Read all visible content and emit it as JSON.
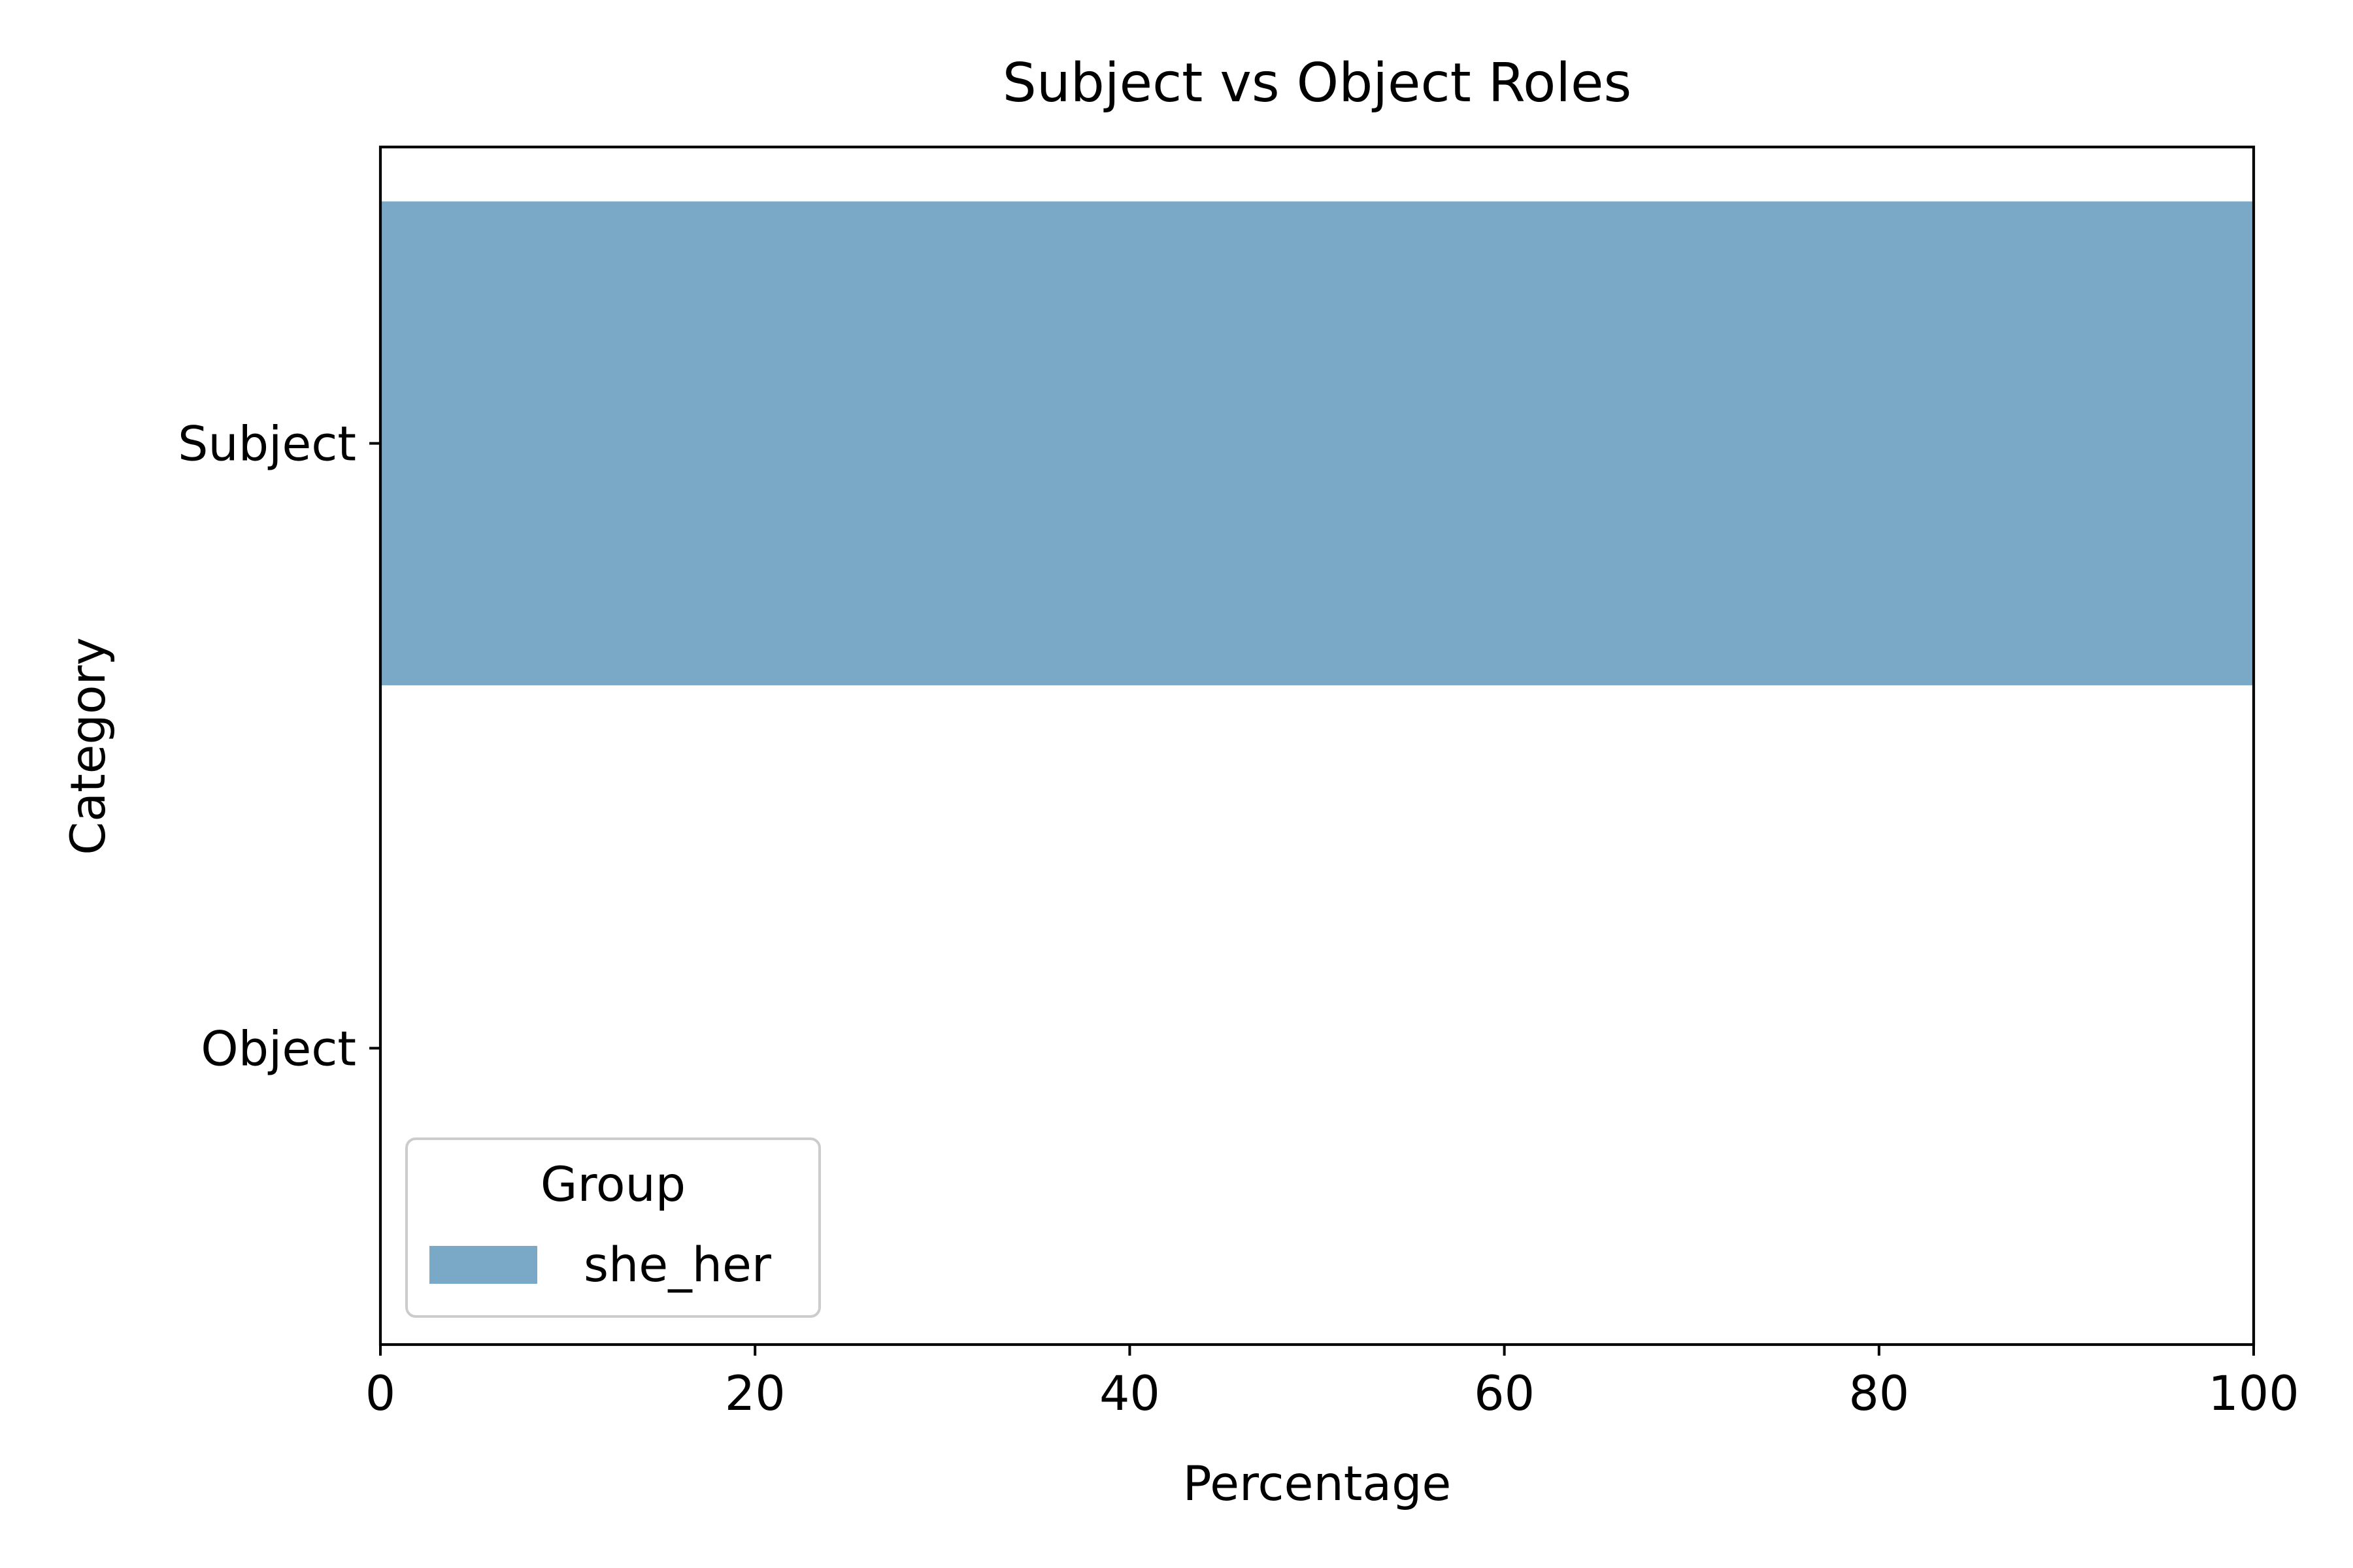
{
  "chart_data": {
    "type": "bar",
    "orientation": "horizontal",
    "title": "Subject vs Object Roles",
    "xlabel": "Percentage",
    "ylabel": "Category",
    "xlim": [
      0,
      100
    ],
    "xticks": [
      "0",
      "20",
      "40",
      "60",
      "80",
      "100"
    ],
    "categories": [
      "Subject",
      "Object"
    ],
    "series": [
      {
        "name": "she_her",
        "values": [
          100,
          0
        ],
        "color": "#7aa9c8"
      }
    ],
    "legend": {
      "title": "Group",
      "placement": "lower-left"
    },
    "grid": false
  }
}
